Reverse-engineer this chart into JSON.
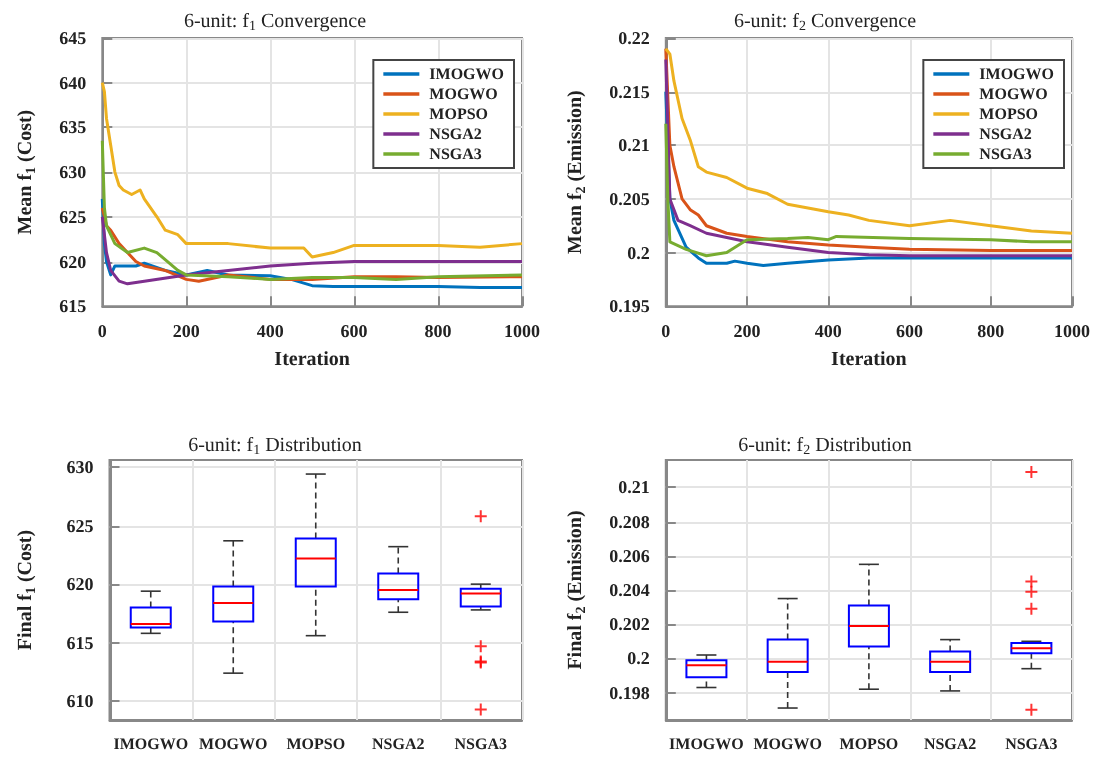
{
  "chart_data": [
    {
      "type": "line",
      "title": "6-unit: f$_{1}$ Convergence",
      "xlabel": "Iteration",
      "ylabel": "Mean f$_{1}$ (Cost)",
      "xlim": [
        0,
        1000
      ],
      "xticks": [
        0,
        200,
        400,
        600,
        800,
        1000
      ],
      "ylim": [
        615,
        645
      ],
      "yticks": [
        615,
        620,
        625,
        630,
        635,
        640,
        645
      ],
      "grid": true,
      "legend": "top right",
      "series": [
        {
          "name": "IMOGWO",
          "color": "#0072bd",
          "x": [
            0,
            5,
            10,
            20,
            30,
            50,
            80,
            100,
            150,
            200,
            250,
            300,
            400,
            450,
            500,
            550,
            600,
            700,
            800,
            900,
            1000
          ],
          "values": [
            627,
            622,
            620,
            618.5,
            619.5,
            619.5,
            619.5,
            619.8,
            619,
            618.5,
            619,
            618.5,
            618.4,
            618,
            617.3,
            617.2,
            617.2,
            617.2,
            617.2,
            617.1,
            617.1
          ]
        },
        {
          "name": "MOGWO",
          "color": "#d95319",
          "x": [
            0,
            10,
            20,
            40,
            60,
            80,
            100,
            150,
            200,
            230,
            300,
            400,
            500,
            600,
            700,
            800,
            1000
          ],
          "values": [
            626,
            624,
            623.5,
            622,
            621,
            620,
            619.5,
            619,
            618,
            617.8,
            618.5,
            618,
            618,
            618.3,
            618.3,
            618.2,
            618.3
          ]
        },
        {
          "name": "MOPSO",
          "color": "#edb120",
          "x": [
            0,
            5,
            10,
            20,
            30,
            40,
            50,
            70,
            90,
            100,
            130,
            150,
            180,
            200,
            250,
            300,
            400,
            480,
            500,
            550,
            600,
            700,
            800,
            900,
            1000
          ],
          "values": [
            640,
            639,
            636,
            633,
            630,
            628.5,
            628,
            627.5,
            628,
            627,
            625,
            623.5,
            623,
            622,
            622,
            622,
            621.5,
            621.5,
            620.5,
            621,
            621.8,
            621.8,
            621.8,
            621.6,
            622
          ]
        },
        {
          "name": "NSGA2",
          "color": "#7e2f8e",
          "x": [
            0,
            10,
            20,
            40,
            60,
            100,
            200,
            300,
            400,
            500,
            600,
            800,
            1000
          ],
          "values": [
            625,
            621,
            619,
            617.8,
            617.5,
            617.8,
            618.5,
            619,
            619.5,
            619.8,
            620,
            620,
            620
          ]
        },
        {
          "name": "NSGA3",
          "color": "#77ac30",
          "x": [
            0,
            5,
            10,
            30,
            60,
            100,
            130,
            180,
            200,
            300,
            400,
            500,
            600,
            700,
            800,
            1000
          ],
          "values": [
            633.5,
            626,
            624,
            622,
            621,
            621.5,
            621,
            619,
            618.5,
            618.3,
            618,
            618.2,
            618.2,
            618,
            618.3,
            618.5
          ]
        }
      ]
    },
    {
      "type": "line",
      "title": "6-unit: f$_{2}$ Convergence",
      "xlabel": "Iteration",
      "ylabel": "Mean f$_{2}$ (Emission)",
      "xlim": [
        0,
        1000
      ],
      "xticks": [
        0,
        200,
        400,
        600,
        800,
        1000
      ],
      "ylim": [
        0.195,
        0.22
      ],
      "yticks": [
        0.195,
        0.2,
        0.205,
        0.21,
        0.215,
        0.22
      ],
      "grid": true,
      "legend": "top right",
      "series": [
        {
          "name": "IMOGWO",
          "color": "#0072bd",
          "x": [
            0,
            10,
            20,
            50,
            80,
            100,
            150,
            170,
            200,
            240,
            300,
            400,
            500,
            600,
            800,
            1000
          ],
          "values": [
            0.215,
            0.205,
            0.203,
            0.2005,
            0.1995,
            0.199,
            0.199,
            0.1992,
            0.199,
            0.1988,
            0.199,
            0.1993,
            0.1995,
            0.1995,
            0.1995,
            0.1995
          ]
        },
        {
          "name": "MOGWO",
          "color": "#d95319",
          "x": [
            0,
            10,
            20,
            40,
            60,
            80,
            100,
            150,
            200,
            300,
            400,
            500,
            600,
            800,
            1000
          ],
          "values": [
            0.219,
            0.21,
            0.208,
            0.205,
            0.204,
            0.2035,
            0.2025,
            0.2018,
            0.2015,
            0.201,
            0.2007,
            0.2005,
            0.2003,
            0.2002,
            0.2002
          ]
        },
        {
          "name": "MOPSO",
          "color": "#edb120",
          "x": [
            0,
            10,
            20,
            40,
            60,
            80,
            100,
            150,
            200,
            250,
            300,
            400,
            450,
            500,
            600,
            700,
            800,
            900,
            1000
          ],
          "values": [
            0.219,
            0.2185,
            0.216,
            0.2125,
            0.2105,
            0.208,
            0.2075,
            0.207,
            0.206,
            0.2055,
            0.2045,
            0.2038,
            0.2035,
            0.203,
            0.2025,
            0.203,
            0.2025,
            0.202,
            0.2018
          ]
        },
        {
          "name": "NSGA2",
          "color": "#7e2f8e",
          "x": [
            0,
            10,
            30,
            60,
            100,
            200,
            300,
            400,
            500,
            600,
            800,
            1000
          ],
          "values": [
            0.218,
            0.205,
            0.203,
            0.2025,
            0.2018,
            0.201,
            0.2005,
            0.2,
            0.1998,
            0.1997,
            0.1997,
            0.1997
          ]
        },
        {
          "name": "NSGA3",
          "color": "#77ac30",
          "x": [
            0,
            5,
            10,
            50,
            100,
            150,
            200,
            300,
            350,
            400,
            420,
            600,
            800,
            900,
            1000
          ],
          "values": [
            0.212,
            0.205,
            0.201,
            0.2003,
            0.1997,
            0.2,
            0.2012,
            0.2013,
            0.2014,
            0.2012,
            0.2015,
            0.2013,
            0.2012,
            0.201,
            0.201
          ]
        }
      ]
    },
    {
      "type": "box",
      "title": "6-unit: f$_{1}$ Distribution",
      "ylabel": "Final f$_{1}$ (Cost)",
      "categories": [
        "IMOGWO",
        "MOGWO",
        "MOPSO",
        "NSGA2",
        "NSGA3"
      ],
      "ylim": [
        608.4,
        630.6
      ],
      "yticks": [
        610,
        615,
        620,
        625,
        630
      ],
      "grid": true,
      "series": [
        {
          "color": "#0000ff",
          "boxes": [
            {
              "low": 615.8,
              "q1": 616.3,
              "median": 616.6,
              "q3": 618,
              "high": 619.4
            },
            {
              "low": 612.4,
              "q1": 616.8,
              "median": 618.4,
              "q3": 619.8,
              "high": 623.7
            },
            {
              "low": 615.6,
              "q1": 619.8,
              "median": 622.2,
              "q3": 623.9,
              "high": 629.4
            },
            {
              "low": 617.6,
              "q1": 618.7,
              "median": 619.5,
              "q3": 620.9,
              "high": 623.2
            },
            {
              "low": 617.8,
              "q1": 618.1,
              "median": 619.2,
              "q3": 619.6,
              "high": 620,
              "outliers": [
                625.8,
                614.7,
                613.4,
                613.3,
                609.3
              ]
            }
          ]
        }
      ]
    },
    {
      "type": "box",
      "title": "6-unit: f$_{2}$ Distribution",
      "ylabel": "Final f$_{2}$ (Emission)",
      "categories": [
        "IMOGWO",
        "MOGWO",
        "MOPSO",
        "NSGA2",
        "NSGA3"
      ],
      "ylim": [
        0.1964,
        0.2116
      ],
      "yticks": [
        0.198,
        0.2,
        0.202,
        0.204,
        0.206,
        0.208,
        0.21
      ],
      "grid": true,
      "series": [
        {
          "color": "#0000ff",
          "boxes": [
            {
              "low": 0.1983,
              "q1": 0.1989,
              "median": 0.1996,
              "q3": 0.1999,
              "high": 0.2002
            },
            {
              "low": 0.1971,
              "q1": 0.1992,
              "median": 0.1998,
              "q3": 0.2011,
              "high": 0.2035
            },
            {
              "low": 0.1982,
              "q1": 0.2007,
              "median": 0.2019,
              "q3": 0.2031,
              "high": 0.2055
            },
            {
              "low": 0.1981,
              "q1": 0.1992,
              "median": 0.1998,
              "q3": 0.2004,
              "high": 0.2011
            },
            {
              "low": 0.1994,
              "q1": 0.2003,
              "median": 0.2006,
              "q3": 0.2009,
              "high": 0.201,
              "outliers": [
                0.2109,
                0.2045,
                0.2039,
                0.2029,
                0.197
              ]
            }
          ]
        }
      ]
    }
  ]
}
